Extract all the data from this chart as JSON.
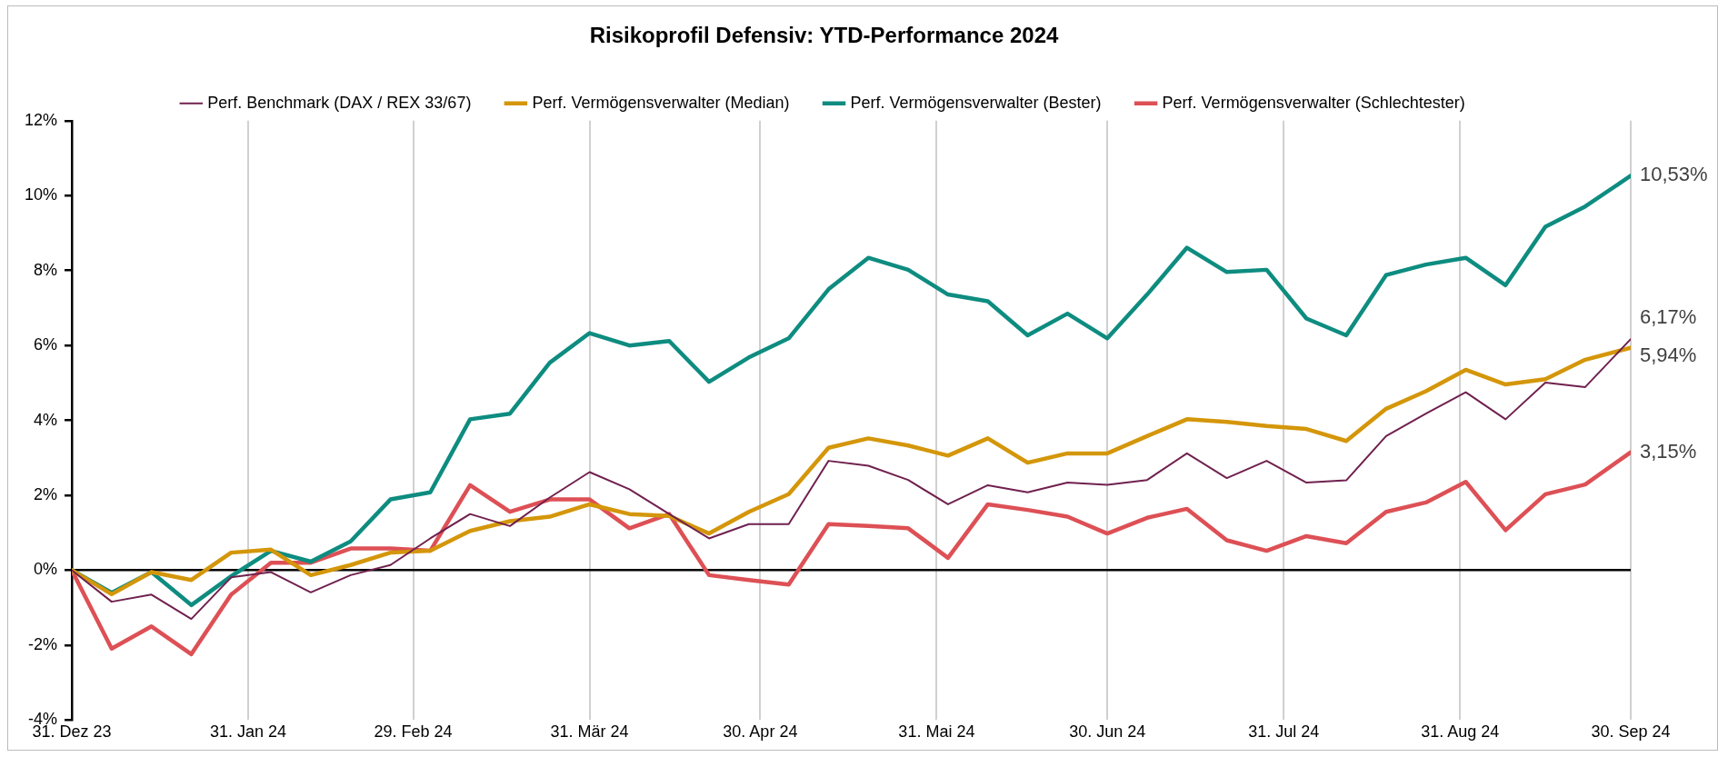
{
  "chart_data": {
    "type": "line",
    "title": "Risikoprofil Defensiv: YTD-Performance 2024",
    "x": [
      "2023-12-31",
      "2024-01-07",
      "2024-01-14",
      "2024-01-21",
      "2024-01-28",
      "2024-02-04",
      "2024-02-11",
      "2024-02-18",
      "2024-02-25",
      "2024-03-03",
      "2024-03-10",
      "2024-03-17",
      "2024-03-24",
      "2024-03-31",
      "2024-04-07",
      "2024-04-14",
      "2024-04-21",
      "2024-04-28",
      "2024-05-05",
      "2024-05-12",
      "2024-05-19",
      "2024-05-26",
      "2024-06-02",
      "2024-06-09",
      "2024-06-16",
      "2024-06-23",
      "2024-06-30",
      "2024-07-07",
      "2024-07-14",
      "2024-07-21",
      "2024-07-28",
      "2024-08-04",
      "2024-08-11",
      "2024-08-18",
      "2024-08-25",
      "2024-09-01",
      "2024-09-08",
      "2024-09-15",
      "2024-09-22",
      "2024-09-30"
    ],
    "series": [
      {
        "name": "Perf. Benchmark (DAX / REX 33/67)",
        "color": "#70214f",
        "values": [
          0,
          -0.84,
          -0.65,
          -1.3,
          -0.19,
          -0.05,
          -0.59,
          -0.13,
          0.14,
          0.85,
          1.5,
          1.18,
          1.94,
          2.62,
          2.16,
          1.5,
          0.85,
          1.23,
          1.23,
          2.92,
          2.79,
          2.41,
          1.76,
          2.27,
          2.08,
          2.34,
          2.28,
          2.41,
          3.12,
          2.46,
          2.92,
          2.34,
          2.4,
          3.58,
          4.18,
          4.75,
          4.03,
          5.01,
          4.89,
          6.17
        ],
        "value_labels": [
          null,
          null,
          null,
          null,
          null,
          null,
          null,
          null,
          null,
          null,
          null,
          null,
          null,
          null,
          null,
          null,
          null,
          null,
          null,
          null,
          null,
          null,
          null,
          null,
          null,
          null,
          null,
          null,
          null,
          null,
          null,
          null,
          null,
          null,
          null,
          null,
          null,
          null,
          null,
          "6,17%"
        ]
      },
      {
        "name": "Perf. Vermögensverwalter (Median)",
        "color": "#d4960a",
        "values": [
          0,
          -0.64,
          -0.05,
          -0.26,
          0.47,
          0.55,
          -0.13,
          0.14,
          0.47,
          0.52,
          1.05,
          1.31,
          1.43,
          1.76,
          1.5,
          1.45,
          0.98,
          1.56,
          2.03,
          3.27,
          3.52,
          3.33,
          3.06,
          3.52,
          2.87,
          3.12,
          3.12,
          3.58,
          4.03,
          3.96,
          3.85,
          3.77,
          3.45,
          4.31,
          4.78,
          5.35,
          4.96,
          5.1,
          5.62,
          5.94
        ],
        "value_labels": [
          null,
          null,
          null,
          null,
          null,
          null,
          null,
          null,
          null,
          null,
          null,
          null,
          null,
          null,
          null,
          null,
          null,
          null,
          null,
          null,
          null,
          null,
          null,
          null,
          null,
          null,
          null,
          null,
          null,
          null,
          null,
          null,
          null,
          null,
          null,
          null,
          null,
          null,
          null,
          "5,94%"
        ]
      },
      {
        "name": "Perf. Vermögensverwalter (Bester)",
        "color": "#0e8c80",
        "values": [
          0,
          -0.6,
          -0.05,
          -0.93,
          -0.16,
          0.52,
          0.23,
          0.77,
          1.89,
          2.08,
          4.03,
          4.18,
          5.54,
          6.33,
          6.0,
          6.12,
          5.03,
          5.68,
          6.19,
          7.5,
          8.34,
          8.02,
          7.36,
          7.18,
          6.27,
          6.85,
          6.19,
          7.36,
          8.61,
          7.96,
          8.02,
          6.72,
          6.27,
          7.88,
          8.16,
          8.34,
          7.61,
          9.17,
          9.71,
          10.53
        ],
        "value_labels": [
          null,
          null,
          null,
          null,
          null,
          null,
          null,
          null,
          null,
          null,
          null,
          null,
          null,
          null,
          null,
          null,
          null,
          null,
          null,
          null,
          null,
          null,
          null,
          null,
          null,
          null,
          null,
          null,
          null,
          null,
          null,
          null,
          null,
          null,
          null,
          null,
          null,
          null,
          null,
          "10,53%"
        ]
      },
      {
        "name": "Perf. Vermögensverwalter (Schlechtester)",
        "color": "#dd5055",
        "values": [
          0,
          -2.09,
          -1.5,
          -2.24,
          -0.65,
          0.2,
          0.2,
          0.58,
          0.58,
          0.52,
          2.27,
          1.56,
          1.89,
          1.89,
          1.12,
          1.5,
          -0.13,
          -0.26,
          -0.38,
          1.23,
          1.18,
          1.12,
          0.33,
          1.76,
          1.61,
          1.43,
          0.98,
          1.4,
          1.64,
          0.8,
          0.52,
          0.91,
          0.72,
          1.56,
          1.81,
          2.36,
          1.07,
          2.03,
          2.29,
          3.15
        ],
        "value_labels": [
          null,
          null,
          null,
          null,
          null,
          null,
          null,
          null,
          null,
          null,
          null,
          null,
          null,
          null,
          null,
          null,
          null,
          null,
          null,
          null,
          null,
          null,
          null,
          null,
          null,
          null,
          null,
          null,
          null,
          null,
          null,
          null,
          null,
          null,
          null,
          null,
          null,
          null,
          null,
          "3,15%"
        ]
      }
    ],
    "xlim": [
      "2023-12-31",
      "2024-09-30"
    ],
    "xticks": [
      {
        "value": "2023-12-31",
        "label": "31. Dez 23"
      },
      {
        "value": "2024-01-31",
        "label": "31. Jan 24"
      },
      {
        "value": "2024-02-29",
        "label": "29. Feb 24"
      },
      {
        "value": "2024-03-31",
        "label": "31. Mär 24"
      },
      {
        "value": "2024-04-30",
        "label": "30. Apr 24"
      },
      {
        "value": "2024-05-31",
        "label": "31. Mai 24"
      },
      {
        "value": "2024-06-30",
        "label": "30. Jun 24"
      },
      {
        "value": "2024-07-31",
        "label": "31. Jul 24"
      },
      {
        "value": "2024-08-31",
        "label": "31. Aug 24"
      },
      {
        "value": "2024-09-30",
        "label": "30. Sep 24"
      }
    ],
    "ylim": [
      -4,
      12
    ],
    "yticks": [
      {
        "value": -4,
        "label": "-4%"
      },
      {
        "value": -2,
        "label": "-2%"
      },
      {
        "value": 0,
        "label": "0%"
      },
      {
        "value": 2,
        "label": "2%"
      },
      {
        "value": 4,
        "label": "4%"
      },
      {
        "value": 6,
        "label": "6%"
      },
      {
        "value": 8,
        "label": "8%"
      },
      {
        "value": 10,
        "label": "10%"
      },
      {
        "value": 12,
        "label": "12%"
      }
    ],
    "grid": "x",
    "legend": "top",
    "marker": "none",
    "line_style": "solid"
  }
}
